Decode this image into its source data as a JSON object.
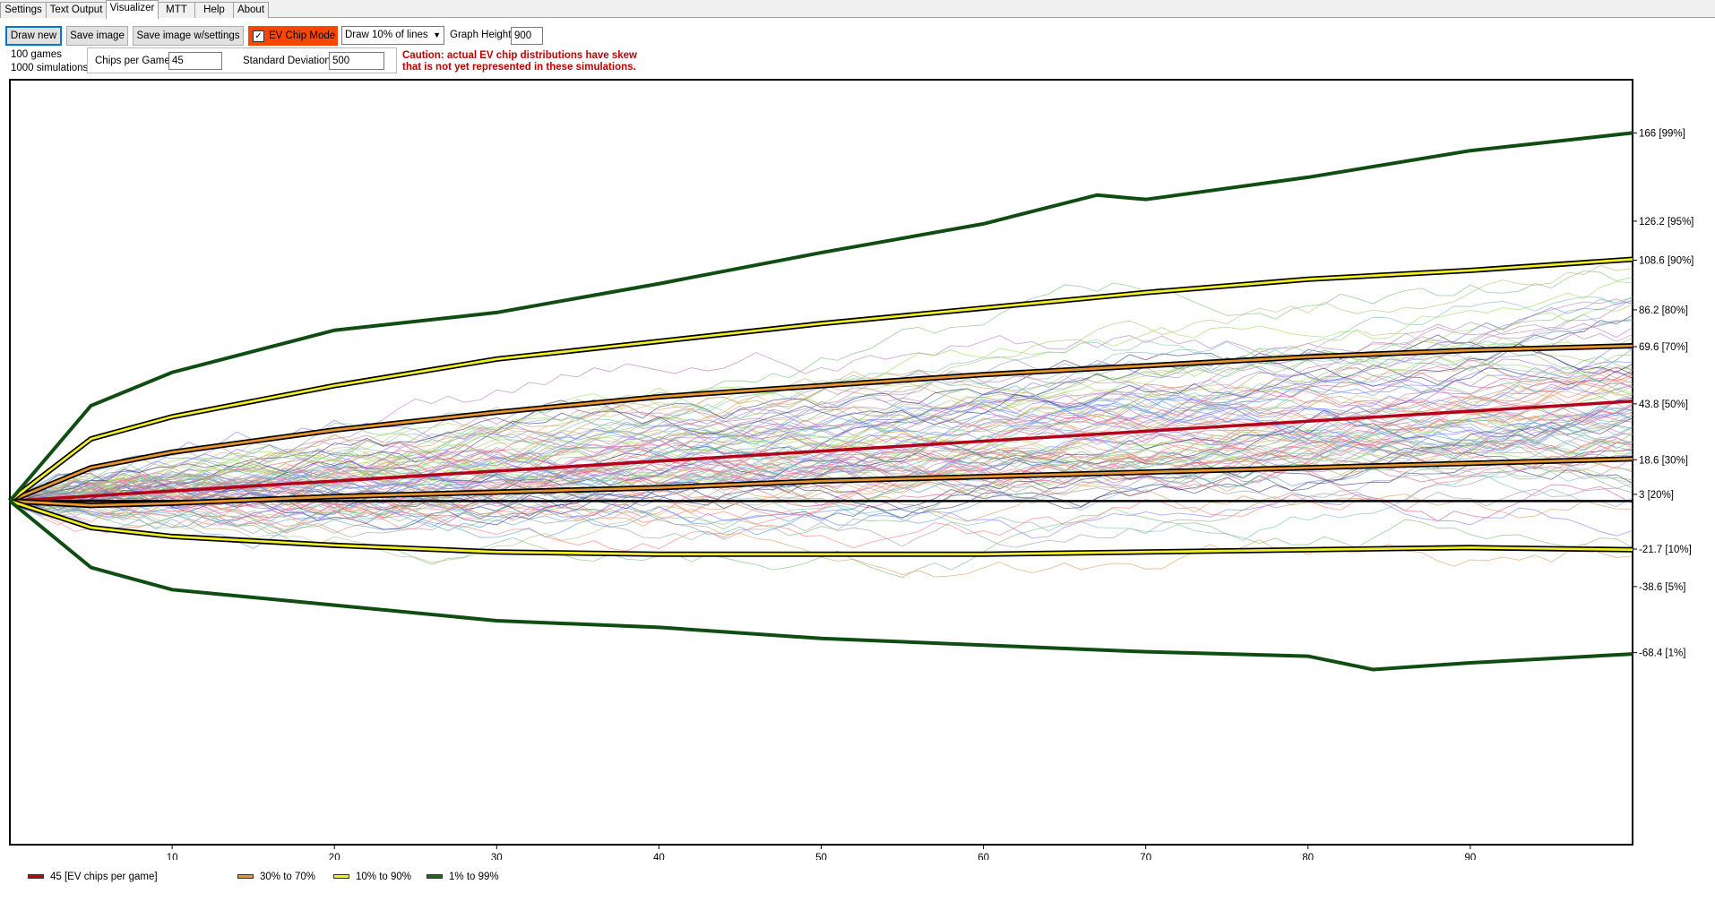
{
  "tabs": [
    {
      "label": "Settings",
      "active": false
    },
    {
      "label": "Text Output",
      "active": false
    },
    {
      "label": "Visualizer",
      "active": true
    },
    {
      "label": "MTT",
      "active": false
    },
    {
      "label": "Help",
      "active": false
    },
    {
      "label": "About",
      "active": false
    }
  ],
  "toolbar": {
    "draw_new": "Draw new",
    "save_image": "Save image",
    "save_image_settings": "Save image w/settings",
    "ev_chip_mode": {
      "label": "EV Chip Mode",
      "checked": true,
      "color": "#ff4500"
    },
    "draw_lines_select": "Draw 10%  of lines",
    "graph_height_label": "Graph Height:",
    "graph_height_value": "900"
  },
  "info": {
    "games": "100 games",
    "simulations": "1000 simulations"
  },
  "fields": {
    "chips_label": "Chips per Game",
    "chips_value": "45",
    "stdev_label": "Standard Deviation",
    "stdev_value": "500"
  },
  "caution": {
    "line1": "Caution: actual EV chip distributions have skew",
    "line2": "that is not yet represented in these simulations."
  },
  "legend": [
    {
      "label": "45 [EV chips per game]",
      "color": "#cc0000"
    },
    {
      "label": "30% to 70%",
      "color": "#e8962a"
    },
    {
      "label": "10% to 90%",
      "color": "#f2f020"
    },
    {
      "label": "1% to 99%",
      "color": "#1a6b1a"
    }
  ],
  "chart_data": {
    "type": "line",
    "x_range": [
      0,
      100
    ],
    "y_range": [
      -155,
      190
    ],
    "x_ticks": [
      10,
      20,
      30,
      40,
      50,
      60,
      70,
      80,
      90
    ],
    "zero_line": 0,
    "percentile_labels": [
      {
        "value": 166,
        "label": "166 [99%]"
      },
      {
        "value": 126.2,
        "label": "126.2 [95%]"
      },
      {
        "value": 108.6,
        "label": "108.6 [90%]"
      },
      {
        "value": 86.2,
        "label": "86.2 [80%]"
      },
      {
        "value": 69.6,
        "label": "69.6 [70%]"
      },
      {
        "value": 43.8,
        "label": "43.8 [50%]"
      },
      {
        "value": 18.6,
        "label": "18.6 [30%]"
      },
      {
        "value": 3,
        "label": "3 [20%]"
      },
      {
        "value": -21.7,
        "label": "-21.7 [10%]"
      },
      {
        "value": -38.6,
        "label": "-38.6 [5%]"
      },
      {
        "value": -68.4,
        "label": "-68.4 [1%]"
      }
    ],
    "series": [
      {
        "band": "EV",
        "color": "#cc0000",
        "points": [
          [
            0,
            0
          ],
          [
            100,
            45
          ]
        ]
      },
      {
        "band": "70%",
        "color": "#e8962a",
        "points": [
          [
            0,
            0
          ],
          [
            5,
            15
          ],
          [
            10,
            22
          ],
          [
            20,
            32
          ],
          [
            30,
            40
          ],
          [
            40,
            47
          ],
          [
            50,
            52
          ],
          [
            60,
            57
          ],
          [
            70,
            61
          ],
          [
            80,
            65
          ],
          [
            90,
            68
          ],
          [
            100,
            70
          ]
        ]
      },
      {
        "band": "30%",
        "color": "#e8962a",
        "points": [
          [
            0,
            0
          ],
          [
            5,
            -2
          ],
          [
            10,
            -1
          ],
          [
            20,
            2
          ],
          [
            30,
            4
          ],
          [
            40,
            6
          ],
          [
            50,
            9
          ],
          [
            60,
            11
          ],
          [
            70,
            13
          ],
          [
            80,
            15
          ],
          [
            90,
            17
          ],
          [
            100,
            19
          ]
        ]
      },
      {
        "band": "90%",
        "color": "#f2f020",
        "points": [
          [
            0,
            0
          ],
          [
            5,
            28
          ],
          [
            10,
            38
          ],
          [
            20,
            52
          ],
          [
            30,
            64
          ],
          [
            40,
            72
          ],
          [
            50,
            80
          ],
          [
            60,
            87
          ],
          [
            70,
            94
          ],
          [
            80,
            100
          ],
          [
            90,
            104
          ],
          [
            100,
            109
          ]
        ]
      },
      {
        "band": "10%",
        "color": "#f2f020",
        "points": [
          [
            0,
            0
          ],
          [
            5,
            -12
          ],
          [
            10,
            -16
          ],
          [
            20,
            -20
          ],
          [
            30,
            -23
          ],
          [
            40,
            -24
          ],
          [
            50,
            -24
          ],
          [
            60,
            -24
          ],
          [
            70,
            -23
          ],
          [
            80,
            -22
          ],
          [
            90,
            -21
          ],
          [
            100,
            -22
          ]
        ]
      },
      {
        "band": "99%",
        "color": "#1a6b1a",
        "points": [
          [
            0,
            0
          ],
          [
            5,
            43
          ],
          [
            10,
            58
          ],
          [
            20,
            77
          ],
          [
            30,
            85
          ],
          [
            40,
            98
          ],
          [
            50,
            112
          ],
          [
            60,
            125
          ],
          [
            67,
            138
          ],
          [
            70,
            136
          ],
          [
            80,
            146
          ],
          [
            90,
            158
          ],
          [
            100,
            166
          ]
        ]
      },
      {
        "band": "1%",
        "color": "#1a6b1a",
        "points": [
          [
            0,
            0
          ],
          [
            5,
            -30
          ],
          [
            10,
            -40
          ],
          [
            20,
            -47
          ],
          [
            30,
            -54
          ],
          [
            40,
            -57
          ],
          [
            50,
            -62
          ],
          [
            60,
            -65
          ],
          [
            70,
            -68
          ],
          [
            80,
            -70
          ],
          [
            84,
            -76
          ],
          [
            90,
            -73
          ],
          [
            100,
            -69
          ]
        ]
      }
    ]
  }
}
